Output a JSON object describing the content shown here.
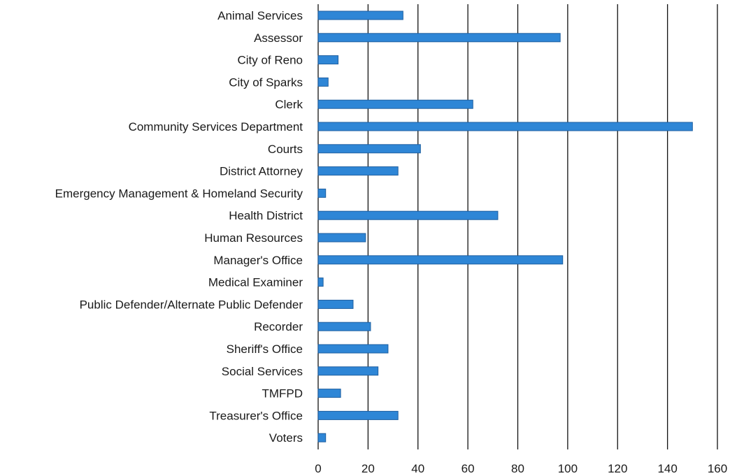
{
  "chart_data": {
    "type": "bar",
    "orientation": "horizontal",
    "categories": [
      "Animal Services",
      "Assessor",
      "City of Reno",
      "City of Sparks",
      "Clerk",
      "Community Services Department",
      "Courts",
      "District Attorney",
      "Emergency Management & Homeland Security",
      "Health District",
      "Human Resources",
      "Manager's Office",
      "Medical Examiner",
      "Public Defender/Alternate Public Defender",
      "Recorder",
      "Sheriff's Office",
      "Social Services",
      "TMFPD",
      "Treasurer's Office",
      "Voters"
    ],
    "values": [
      34,
      97,
      8,
      4,
      62,
      150,
      41,
      32,
      3,
      72,
      19,
      98,
      2,
      14,
      21,
      28,
      24,
      9,
      32,
      3
    ],
    "xlim": [
      0,
      160
    ],
    "xticks": [
      "0",
      "20",
      "40",
      "60",
      "80",
      "100",
      "120",
      "140",
      "160"
    ],
    "grid": "vertical",
    "bar_color": "#2e86d6",
    "title": "",
    "xlabel": "",
    "ylabel": ""
  }
}
